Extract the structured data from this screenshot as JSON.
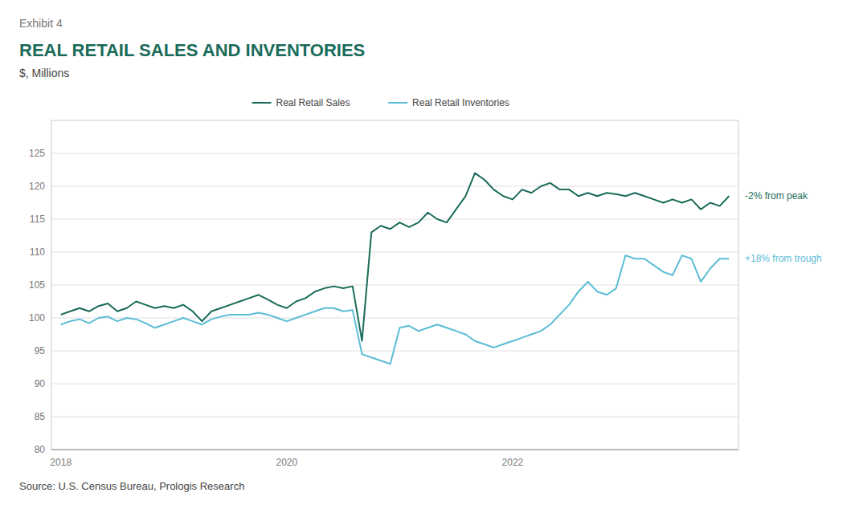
{
  "chart_data": {
    "type": "line",
    "exhibit_label": "Exhibit 4",
    "title": "REAL RETAIL SALES AND INVENTORIES",
    "subtitle": "$, Millions",
    "source": "Source: U.S. Census Bureau, Prologis Research",
    "annotations": [
      "-2% from peak",
      "+18% from trough"
    ],
    "categories": [
      "2018",
      null,
      null,
      null,
      null,
      null,
      null,
      null,
      null,
      null,
      null,
      null,
      null,
      null,
      null,
      null,
      null,
      null,
      null,
      null,
      null,
      null,
      null,
      null,
      "2020",
      null,
      null,
      null,
      null,
      null,
      null,
      null,
      null,
      null,
      null,
      null,
      null,
      null,
      null,
      null,
      null,
      null,
      null,
      null,
      null,
      null,
      null,
      null,
      "2022",
      null,
      null,
      null,
      null,
      null,
      null,
      null,
      null,
      null,
      null,
      null,
      null,
      null,
      null,
      null,
      null,
      null,
      null,
      null,
      null,
      null,
      null,
      null
    ],
    "series": [
      {
        "name": "Real Retail Sales",
        "color": "#1a6b5a",
        "values": [
          100.5,
          101.0,
          101.5,
          101.0,
          101.8,
          102.2,
          101.0,
          101.5,
          102.5,
          102.0,
          101.5,
          101.8,
          101.5,
          102.0,
          101.0,
          99.5,
          101.0,
          101.5,
          102.0,
          102.5,
          103.0,
          103.5,
          102.8,
          102.0,
          101.5,
          102.5,
          103.0,
          104.0,
          104.5,
          104.8,
          104.5,
          104.8,
          96.5,
          113.0,
          114.0,
          113.5,
          114.5,
          113.8,
          114.5,
          116.0,
          115.0,
          114.5,
          116.5,
          118.5,
          122.0,
          121.0,
          119.5,
          118.5,
          118.0,
          119.5,
          119.0,
          120.0,
          120.5,
          119.5,
          119.5,
          118.5,
          119.0,
          118.5,
          119.0,
          118.8,
          118.5,
          119.0,
          118.5,
          118.0,
          117.5,
          118.0,
          117.5,
          118.0,
          116.5,
          117.5,
          117.0,
          118.5
        ]
      },
      {
        "name": "Real Retail Inventories",
        "color": "#5bbcd6",
        "values": [
          99.0,
          99.5,
          99.8,
          99.2,
          100.0,
          100.2,
          99.5,
          100.0,
          99.8,
          99.2,
          98.5,
          99.0,
          99.5,
          100.0,
          99.5,
          99.0,
          99.8,
          100.2,
          100.5,
          100.5,
          100.5,
          100.8,
          100.5,
          100.0,
          99.5,
          100.0,
          100.5,
          101.0,
          101.5,
          101.5,
          101.0,
          101.2,
          94.5,
          94.0,
          93.5,
          93.0,
          98.5,
          98.8,
          98.0,
          98.5,
          99.0,
          98.5,
          98.0,
          97.5,
          96.5,
          96.0,
          95.5,
          96.0,
          96.5,
          97.0,
          97.5,
          98.0,
          99.0,
          100.5,
          102.0,
          104.0,
          105.5,
          104.0,
          103.5,
          104.5,
          109.5,
          109.0,
          109.0,
          108.0,
          107.0,
          106.5,
          109.5,
          109.0,
          105.5,
          107.5,
          109.0,
          109.0
        ]
      }
    ],
    "ylim": [
      80,
      130
    ],
    "yticks": [
      80,
      85,
      90,
      95,
      100,
      105,
      110,
      115,
      120,
      125
    ],
    "grid": true,
    "legend": "top"
  }
}
